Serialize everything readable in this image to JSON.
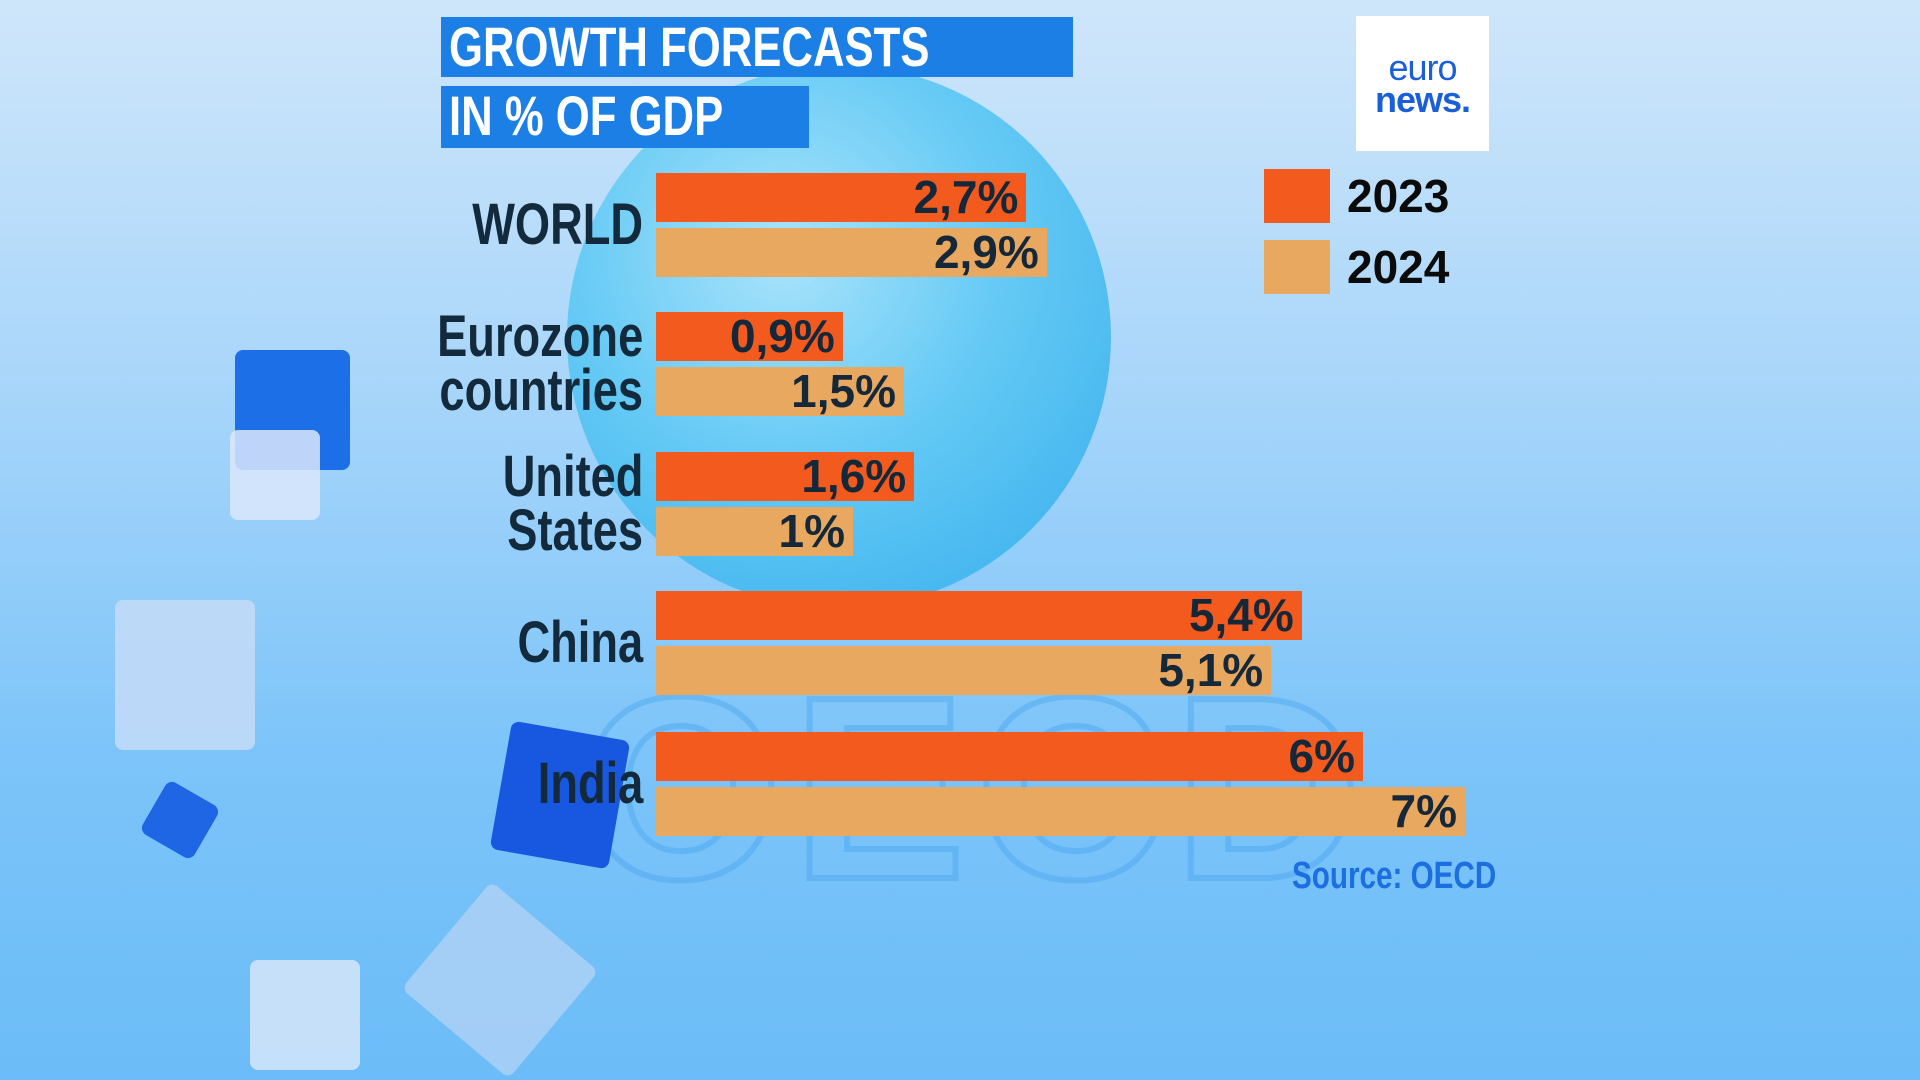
{
  "chart_data": {
    "type": "bar",
    "orientation": "horizontal",
    "title": "GROWTH FORECASTS IN % OF GDP",
    "title_lines": [
      "GROWTH FORECASTS",
      "IN % OF GDP"
    ],
    "categories": [
      [
        "WORLD"
      ],
      [
        "Eurozone",
        "countries"
      ],
      [
        "United",
        "States"
      ],
      [
        "China"
      ],
      [
        "India"
      ]
    ],
    "series": [
      {
        "name": "2023",
        "color": "#f25a1e",
        "values": [
          2.7,
          0.9,
          1.6,
          5.4,
          6
        ],
        "labels": [
          "2,7%",
          "0,9%",
          "1,6%",
          "5,4%",
          "6%"
        ]
      },
      {
        "name": "2024",
        "color": "#e8a860",
        "values": [
          2.9,
          1.5,
          1,
          5.1,
          7
        ],
        "labels": [
          "2,9%",
          "1,5%",
          "1%",
          "5,1%",
          "7%"
        ]
      }
    ],
    "legend_position": "top-right",
    "grid": false,
    "source": "Source: OECD"
  },
  "logo": {
    "line1": "euro",
    "line2": "news."
  }
}
